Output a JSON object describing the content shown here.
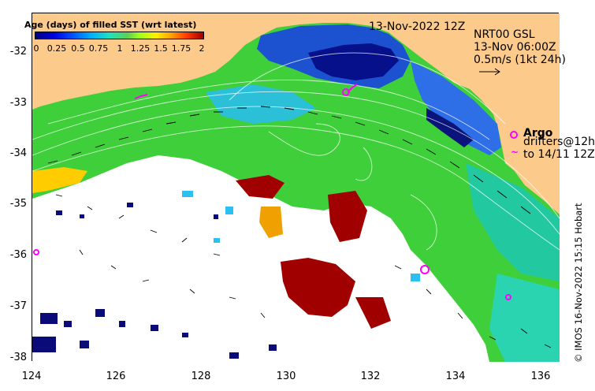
{
  "legend": {
    "title": "Age (days) of filled SST (wrt latest)",
    "ticks": [
      "0",
      "0.25",
      "0.5",
      "0.75",
      "1",
      "1.25",
      "1.5",
      "1.75",
      "2"
    ]
  },
  "header": {
    "date": "13-Nov-2022 12Z",
    "product": "NRT00 GSL",
    "timestamp": "13-Nov 06:00Z",
    "scale_text": "0.5m/s (1kt 24h)"
  },
  "floats": {
    "argo_label": "Argo",
    "drifters_line1": "drifters@12h",
    "drifters_line2": "to 14/11 12Z"
  },
  "axes": {
    "y_ticks": [
      "-32",
      "-33",
      "-34",
      "-35",
      "-36",
      "-37",
      "-38"
    ],
    "x_ticks": [
      "124",
      "126",
      "128",
      "130",
      "132",
      "134",
      "136"
    ]
  },
  "credit": "© IMOS 16-Nov-2022 15:15 Hobart",
  "colors": {
    "land": "#fccb8c",
    "missing": "#ffffff",
    "stale": "#a00000",
    "oldest_blue": "#0a0a78",
    "argo": "#ff00ff"
  }
}
